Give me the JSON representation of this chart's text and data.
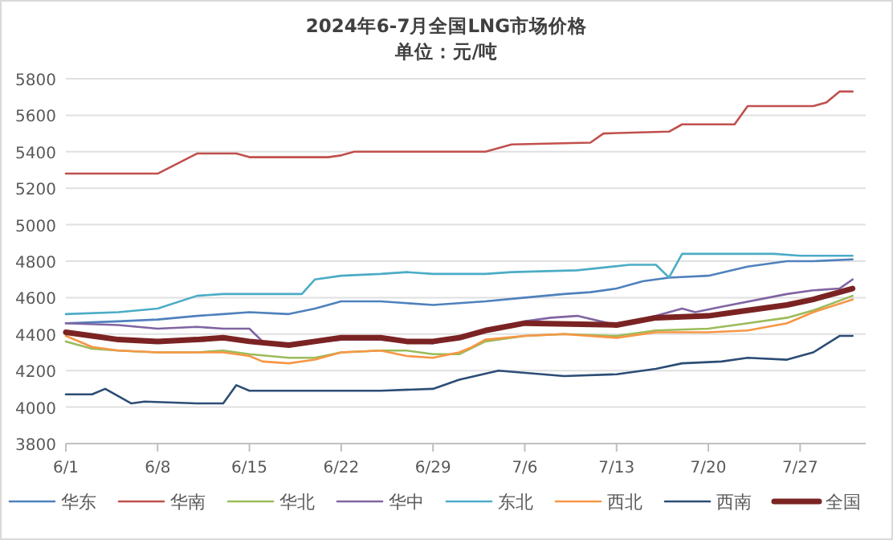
{
  "chart_data": {
    "type": "line",
    "title": "2024年6-7月全国LNG市场价格",
    "subtitle": "单位：元/吨",
    "xlim": [
      "2024-06-01",
      "2024-08-01"
    ],
    "xticks": [
      {
        "value": "2024-06-01",
        "label": "6/1"
      },
      {
        "value": "2024-06-08",
        "label": "6/8"
      },
      {
        "value": "2024-06-15",
        "label": "6/15"
      },
      {
        "value": "2024-06-22",
        "label": "6/22"
      },
      {
        "value": "2024-06-29",
        "label": "6/29"
      },
      {
        "value": "2024-07-06",
        "label": "7/6"
      },
      {
        "value": "2024-07-13",
        "label": "7/13"
      },
      {
        "value": "2024-07-20",
        "label": "7/20"
      },
      {
        "value": "2024-07-27",
        "label": "7/27"
      }
    ],
    "ylim": [
      3800,
      5800
    ],
    "yticks": [
      3800,
      4000,
      4200,
      4400,
      4600,
      4800,
      5000,
      5200,
      5400,
      5600,
      5800
    ],
    "grid": "y",
    "legend": "bottom",
    "marker": "none",
    "line_style": "solid",
    "series": [
      {
        "name": "华东",
        "color": "#4f81bd",
        "x": [
          "2024-06-01",
          "2024-06-05",
          "2024-06-08",
          "2024-06-11",
          "2024-06-13",
          "2024-06-15",
          "2024-06-18",
          "2024-06-20",
          "2024-06-22",
          "2024-06-25",
          "2024-06-27",
          "2024-06-29",
          "2024-07-03",
          "2024-07-06",
          "2024-07-09",
          "2024-07-11",
          "2024-07-13",
          "2024-07-15",
          "2024-07-17",
          "2024-07-20",
          "2024-07-23",
          "2024-07-26",
          "2024-07-28",
          "2024-07-31"
        ],
        "values": [
          4460,
          4470,
          4480,
          4500,
          4510,
          4520,
          4510,
          4540,
          4580,
          4580,
          4570,
          4560,
          4580,
          4600,
          4620,
          4630,
          4650,
          4690,
          4710,
          4720,
          4770,
          4800,
          4800,
          4810
        ]
      },
      {
        "name": "华南",
        "color": "#c0504d",
        "x": [
          "2024-06-01",
          "2024-06-08",
          "2024-06-11",
          "2024-06-14",
          "2024-06-15",
          "2024-06-21",
          "2024-06-22",
          "2024-06-23",
          "2024-07-03",
          "2024-07-05",
          "2024-07-11",
          "2024-07-12",
          "2024-07-17",
          "2024-07-18",
          "2024-07-22",
          "2024-07-23",
          "2024-07-28",
          "2024-07-29",
          "2024-07-30",
          "2024-07-31"
        ],
        "values": [
          5280,
          5280,
          5390,
          5390,
          5370,
          5370,
          5380,
          5400,
          5400,
          5440,
          5450,
          5500,
          5510,
          5550,
          5550,
          5650,
          5650,
          5670,
          5730,
          5730
        ]
      },
      {
        "name": "华北",
        "color": "#9bbb59",
        "x": [
          "2024-06-01",
          "2024-06-03",
          "2024-06-05",
          "2024-06-08",
          "2024-06-11",
          "2024-06-13",
          "2024-06-15",
          "2024-06-18",
          "2024-06-20",
          "2024-06-22",
          "2024-06-25",
          "2024-06-27",
          "2024-06-29",
          "2024-07-01",
          "2024-07-03",
          "2024-07-06",
          "2024-07-09",
          "2024-07-13",
          "2024-07-16",
          "2024-07-20",
          "2024-07-23",
          "2024-07-26",
          "2024-07-28",
          "2024-07-31"
        ],
        "values": [
          4360,
          4320,
          4310,
          4300,
          4300,
          4310,
          4290,
          4270,
          4270,
          4300,
          4310,
          4310,
          4290,
          4290,
          4360,
          4390,
          4400,
          4390,
          4420,
          4430,
          4460,
          4490,
          4530,
          4610
        ]
      },
      {
        "name": "华中",
        "color": "#8064a2",
        "x": [
          "2024-06-01",
          "2024-06-05",
          "2024-06-08",
          "2024-06-11",
          "2024-06-13",
          "2024-06-15",
          "2024-06-16",
          "2024-06-18",
          "2024-06-22",
          "2024-06-25",
          "2024-06-29",
          "2024-07-01",
          "2024-07-06",
          "2024-07-08",
          "2024-07-10",
          "2024-07-13",
          "2024-07-16",
          "2024-07-18",
          "2024-07-19",
          "2024-07-21",
          "2024-07-26",
          "2024-07-28",
          "2024-07-30",
          "2024-07-31"
        ],
        "values": [
          4460,
          4450,
          4430,
          4440,
          4430,
          4430,
          4360,
          4340,
          4370,
          4370,
          4350,
          4380,
          4470,
          4490,
          4500,
          4450,
          4500,
          4540,
          4520,
          4550,
          4620,
          4640,
          4650,
          4700
        ]
      },
      {
        "name": "东北",
        "color": "#4bacc6",
        "x": [
          "2024-06-01",
          "2024-06-05",
          "2024-06-08",
          "2024-06-11",
          "2024-06-13",
          "2024-06-19",
          "2024-06-20",
          "2024-06-22",
          "2024-06-25",
          "2024-06-27",
          "2024-06-29",
          "2024-07-03",
          "2024-07-05",
          "2024-07-10",
          "2024-07-14",
          "2024-07-16",
          "2024-07-17",
          "2024-07-18",
          "2024-07-25",
          "2024-07-27",
          "2024-07-31"
        ],
        "values": [
          4510,
          4520,
          4540,
          4610,
          4620,
          4620,
          4700,
          4720,
          4730,
          4740,
          4730,
          4730,
          4740,
          4750,
          4780,
          4780,
          4710,
          4840,
          4840,
          4830,
          4830
        ]
      },
      {
        "name": "西北",
        "color": "#f79646",
        "x": [
          "2024-06-01",
          "2024-06-03",
          "2024-06-05",
          "2024-06-08",
          "2024-06-13",
          "2024-06-15",
          "2024-06-16",
          "2024-06-18",
          "2024-06-20",
          "2024-06-22",
          "2024-06-25",
          "2024-06-27",
          "2024-06-29",
          "2024-07-01",
          "2024-07-02",
          "2024-07-03",
          "2024-07-06",
          "2024-07-09",
          "2024-07-13",
          "2024-07-16",
          "2024-07-20",
          "2024-07-23",
          "2024-07-26",
          "2024-07-28",
          "2024-07-31"
        ],
        "values": [
          4390,
          4330,
          4310,
          4300,
          4300,
          4280,
          4250,
          4240,
          4260,
          4300,
          4310,
          4280,
          4270,
          4300,
          4330,
          4370,
          4390,
          4400,
          4380,
          4410,
          4410,
          4420,
          4460,
          4520,
          4590
        ]
      },
      {
        "name": "西南",
        "color": "#2c4d75",
        "x": [
          "2024-06-01",
          "2024-06-03",
          "2024-06-04",
          "2024-06-06",
          "2024-06-07",
          "2024-06-11",
          "2024-06-13",
          "2024-06-14",
          "2024-06-15",
          "2024-06-18",
          "2024-06-22",
          "2024-06-25",
          "2024-06-29",
          "2024-07-01",
          "2024-07-04",
          "2024-07-09",
          "2024-07-13",
          "2024-07-16",
          "2024-07-18",
          "2024-07-21",
          "2024-07-23",
          "2024-07-26",
          "2024-07-28",
          "2024-07-30",
          "2024-07-31"
        ],
        "values": [
          4070,
          4070,
          4100,
          4020,
          4030,
          4020,
          4020,
          4120,
          4090,
          4090,
          4090,
          4090,
          4100,
          4150,
          4200,
          4170,
          4180,
          4210,
          4240,
          4250,
          4270,
          4260,
          4300,
          4390,
          4390
        ]
      },
      {
        "name": "全国",
        "color": "#7b2323",
        "x": [
          "2024-06-01",
          "2024-06-03",
          "2024-06-05",
          "2024-06-08",
          "2024-06-11",
          "2024-06-13",
          "2024-06-15",
          "2024-06-18",
          "2024-06-20",
          "2024-06-22",
          "2024-06-25",
          "2024-06-27",
          "2024-06-29",
          "2024-07-01",
          "2024-07-03",
          "2024-07-06",
          "2024-07-13",
          "2024-07-16",
          "2024-07-20",
          "2024-07-23",
          "2024-07-26",
          "2024-07-28",
          "2024-07-31"
        ],
        "values": [
          4410,
          4390,
          4370,
          4360,
          4370,
          4380,
          4360,
          4340,
          4360,
          4380,
          4380,
          4360,
          4360,
          4380,
          4420,
          4460,
          4450,
          4490,
          4500,
          4530,
          4560,
          4590,
          4650
        ]
      }
    ]
  }
}
